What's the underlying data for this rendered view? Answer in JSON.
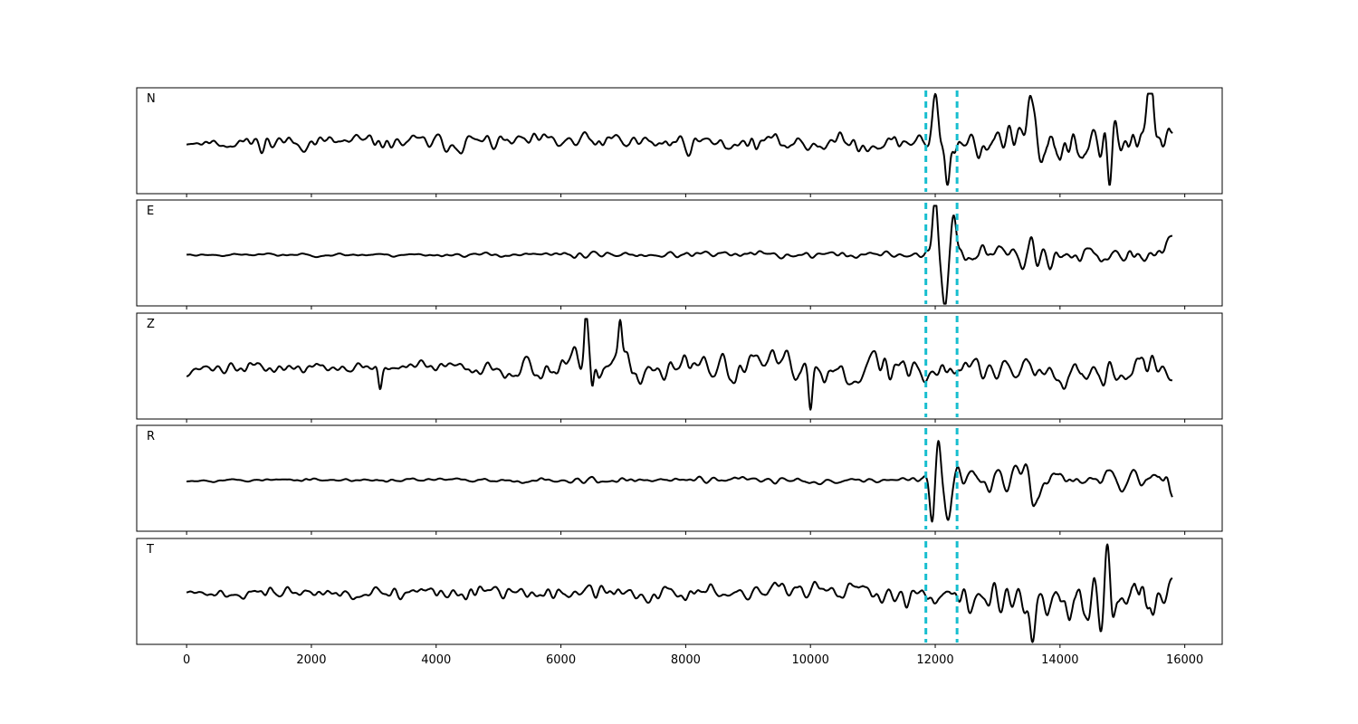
{
  "chart_data": {
    "type": "line",
    "title": "",
    "xlabel": "",
    "ylabel": "",
    "xlim": [
      -800,
      16600
    ],
    "x_ticks": [
      0,
      2000,
      4000,
      6000,
      8000,
      10000,
      12000,
      14000,
      16000
    ],
    "x_tick_labels": [
      "0",
      "2000",
      "4000",
      "6000",
      "8000",
      "10000",
      "12000",
      "14000",
      "16000"
    ],
    "x_range": [
      0,
      15800
    ],
    "markers_x": [
      11850,
      12350
    ],
    "marker_color": "#17becf",
    "grid": false,
    "panels": [
      {
        "label": "N",
        "seed": 11,
        "noise": [
          [
            0,
            0.08
          ],
          [
            700,
            0.22
          ],
          [
            1400,
            0.4
          ],
          [
            1800,
            0.26
          ],
          [
            6000,
            0.3
          ],
          [
            6600,
            0.36
          ],
          [
            9200,
            0.28
          ],
          [
            10800,
            0.34
          ],
          [
            11800,
            0.26
          ],
          [
            11950,
            0.95
          ],
          [
            12400,
            0.6
          ],
          [
            12900,
            0.7
          ],
          [
            13500,
            0.9
          ],
          [
            14700,
            1.0
          ],
          [
            15800,
            0.75
          ]
        ],
        "events": [
          [
            12000,
            1.1,
            60
          ],
          [
            12200,
            -0.9,
            50
          ],
          [
            13500,
            1.0,
            60
          ],
          [
            15450,
            1.0,
            60
          ],
          [
            14800,
            -0.9,
            60
          ]
        ]
      },
      {
        "label": "E",
        "seed": 23,
        "noise": [
          [
            0,
            0.05
          ],
          [
            5800,
            0.08
          ],
          [
            6400,
            0.2
          ],
          [
            6800,
            0.1
          ],
          [
            10000,
            0.16
          ],
          [
            11800,
            0.12
          ],
          [
            11900,
            0.55
          ],
          [
            12800,
            0.45
          ],
          [
            13500,
            0.7
          ],
          [
            14300,
            0.35
          ],
          [
            15800,
            0.45
          ]
        ],
        "events": [
          [
            12000,
            1.15,
            55
          ],
          [
            12150,
            -1.05,
            60
          ],
          [
            12300,
            0.85,
            60
          ],
          [
            13550,
            0.65,
            60
          ]
        ]
      },
      {
        "label": "Z",
        "seed": 37,
        "noise": [
          [
            0,
            0.2
          ],
          [
            3000,
            0.22
          ],
          [
            4900,
            0.25
          ],
          [
            6200,
            0.55
          ],
          [
            6500,
            0.7
          ],
          [
            7000,
            0.6
          ],
          [
            8000,
            0.45
          ],
          [
            9800,
            0.58
          ],
          [
            11800,
            0.58
          ],
          [
            12500,
            0.5
          ],
          [
            15800,
            0.55
          ]
        ],
        "events": [
          [
            3100,
            -0.5,
            40
          ],
          [
            6400,
            1.05,
            40
          ],
          [
            6500,
            -0.95,
            40
          ],
          [
            6950,
            0.8,
            40
          ],
          [
            10000,
            -0.8,
            40
          ]
        ]
      },
      {
        "label": "R",
        "seed": 53,
        "noise": [
          [
            0,
            0.05
          ],
          [
            6000,
            0.08
          ],
          [
            6400,
            0.2
          ],
          [
            6800,
            0.1
          ],
          [
            9500,
            0.14
          ],
          [
            11800,
            0.1
          ],
          [
            11900,
            0.4
          ],
          [
            12600,
            0.4
          ],
          [
            13500,
            0.55
          ],
          [
            14300,
            0.3
          ],
          [
            15800,
            0.4
          ]
        ],
        "events": [
          [
            12050,
            1.2,
            55
          ],
          [
            11950,
            -0.95,
            50
          ],
          [
            12200,
            -0.8,
            60
          ],
          [
            13550,
            -0.6,
            60
          ]
        ]
      },
      {
        "label": "T",
        "seed": 71,
        "noise": [
          [
            0,
            0.12
          ],
          [
            1400,
            0.3
          ],
          [
            1700,
            0.22
          ],
          [
            6000,
            0.28
          ],
          [
            8000,
            0.33
          ],
          [
            10000,
            0.38
          ],
          [
            11800,
            0.42
          ],
          [
            12500,
            0.5
          ],
          [
            13000,
            0.65
          ],
          [
            13500,
            0.9
          ],
          [
            14700,
            1.0
          ],
          [
            15800,
            0.7
          ]
        ],
        "events": [
          [
            13550,
            -1.0,
            60
          ],
          [
            14750,
            1.0,
            60
          ],
          [
            14850,
            -1.0,
            60
          ],
          [
            15500,
            -0.85,
            60
          ]
        ]
      }
    ]
  }
}
